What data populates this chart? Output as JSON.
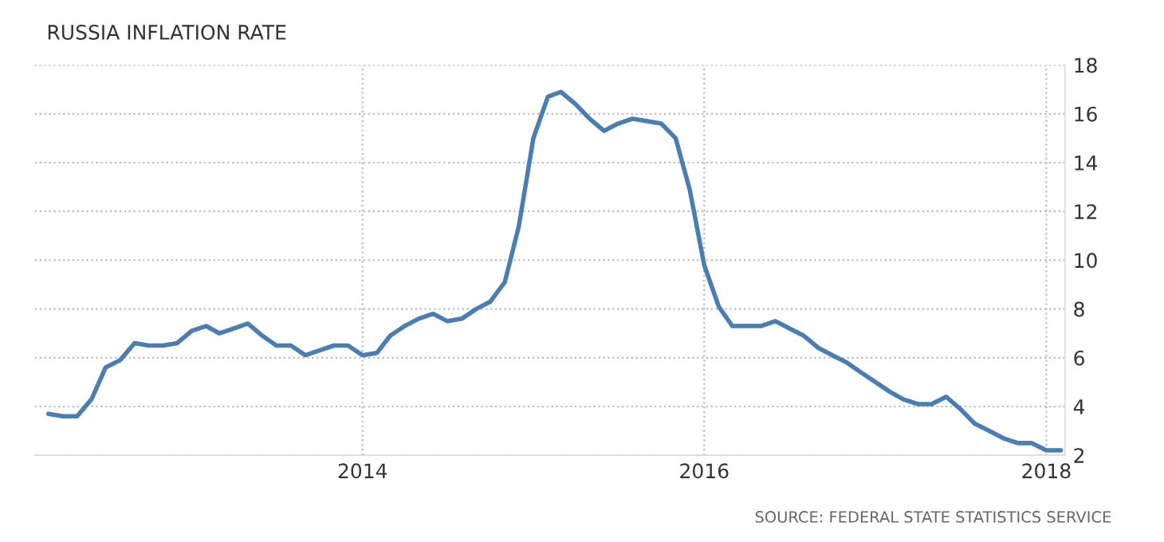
{
  "chart_data": {
    "type": "line",
    "title": "RUSSIA INFLATION RATE",
    "annotations": [
      "SOURCE: FEDERAL STATE STATISTICS SERVICE"
    ],
    "x": [
      "2012-03",
      "2012-04",
      "2012-05",
      "2012-06",
      "2012-07",
      "2012-08",
      "2012-09",
      "2012-10",
      "2012-11",
      "2012-12",
      "2013-01",
      "2013-02",
      "2013-03",
      "2013-04",
      "2013-05",
      "2013-06",
      "2013-07",
      "2013-08",
      "2013-09",
      "2013-10",
      "2013-11",
      "2013-12",
      "2014-01",
      "2014-02",
      "2014-03",
      "2014-04",
      "2014-05",
      "2014-06",
      "2014-07",
      "2014-08",
      "2014-09",
      "2014-10",
      "2014-11",
      "2014-12",
      "2015-01",
      "2015-02",
      "2015-03",
      "2015-04",
      "2015-05",
      "2015-06",
      "2015-07",
      "2015-08",
      "2015-09",
      "2015-10",
      "2015-11",
      "2015-12",
      "2016-01",
      "2016-02",
      "2016-03",
      "2016-04",
      "2016-05",
      "2016-06",
      "2016-07",
      "2016-08",
      "2016-09",
      "2016-10",
      "2016-11",
      "2016-12",
      "2017-01",
      "2017-02",
      "2017-03",
      "2017-04",
      "2017-05",
      "2017-06",
      "2017-07",
      "2017-08",
      "2017-09",
      "2017-10",
      "2017-11",
      "2017-12",
      "2018-01",
      "2018-02"
    ],
    "series": [
      {
        "color": "#4a7db0",
        "values": [
          3.7,
          3.6,
          3.6,
          4.3,
          5.6,
          5.9,
          6.6,
          6.5,
          6.5,
          6.6,
          7.1,
          7.3,
          7.0,
          7.2,
          7.4,
          6.9,
          6.5,
          6.5,
          6.1,
          6.3,
          6.5,
          6.5,
          6.1,
          6.2,
          6.9,
          7.3,
          7.6,
          7.8,
          7.5,
          7.6,
          8.0,
          8.3,
          9.1,
          11.4,
          15.0,
          16.7,
          16.9,
          16.4,
          15.8,
          15.3,
          15.6,
          15.8,
          15.7,
          15.6,
          15.0,
          12.9,
          9.8,
          8.1,
          7.3,
          7.3,
          7.3,
          7.5,
          7.2,
          6.9,
          6.4,
          6.1,
          5.8,
          5.4,
          5.0,
          4.6,
          4.3,
          4.1,
          4.1,
          4.4,
          3.9,
          3.3,
          3.0,
          2.7,
          2.5,
          2.5,
          2.2,
          2.2
        ]
      }
    ],
    "xlim": [
      "2012-02-01",
      "2018-02-10"
    ],
    "xticks": [
      "2014",
      "2016",
      "2018"
    ],
    "ylim": [
      2,
      18
    ],
    "yticks": [
      2,
      4,
      6,
      8,
      10,
      12,
      14,
      16,
      18
    ],
    "grid": true,
    "marker": "none",
    "line_style": "solid"
  }
}
